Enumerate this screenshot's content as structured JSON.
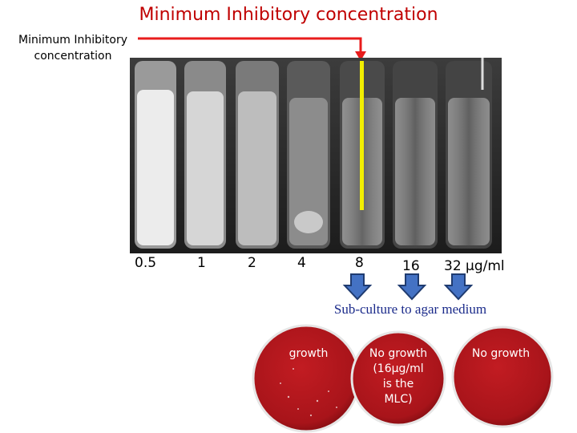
{
  "title": "Minimum Inhibitory concentration",
  "side_label": "Minimum Inhibitory concentration",
  "concentrations": [
    "0.5",
    "1",
    "2",
    "4",
    "8",
    "16",
    "32 µg/ml"
  ],
  "subculture_label": "Sub-culture to agar medium",
  "plates": [
    {
      "text": "growth"
    },
    {
      "lines": [
        "No growth",
        "(16µg/ml",
        "is the",
        "MLC)"
      ]
    },
    {
      "text": "No growth"
    }
  ],
  "colors": {
    "title": "#c00000",
    "pointer": "#e81c1c",
    "mic_marker": "#f2ee00",
    "arrow_fill": "#4472c4",
    "arrow_stroke": "#1f3b70",
    "plate": "#a8141a"
  }
}
